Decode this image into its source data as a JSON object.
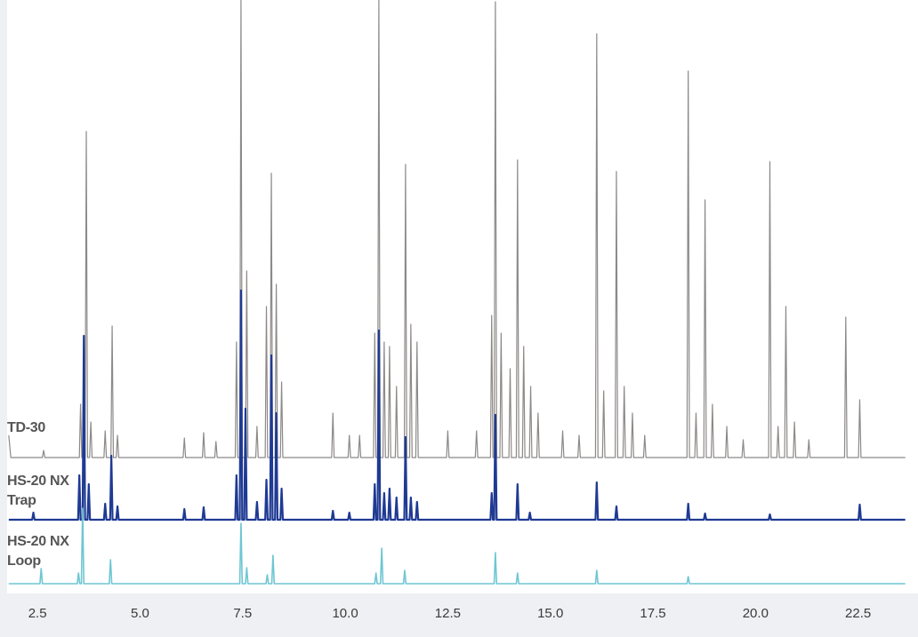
{
  "chart_data": {
    "type": "line",
    "xlim": [
      1.76,
      23.7
    ],
    "xticks": [
      2.5,
      {
        "value": 5,
        "label": "5.0"
      },
      7.5,
      {
        "value": 10,
        "label": "10.0"
      },
      12.5,
      {
        "value": 15,
        "label": "15.0"
      },
      17.5,
      {
        "value": 20,
        "label": "20.0"
      },
      22.5
    ],
    "series": [
      {
        "name": "TD-30",
        "color": "#8c8987",
        "x": [
          1.8,
          1.85,
          2.62,
          2.65,
          2.68,
          3.52,
          3.55,
          3.58,
          3.66,
          3.69,
          3.72,
          3.77,
          3.8,
          3.83,
          4.12,
          4.15,
          4.18,
          4.29,
          4.32,
          4.35,
          4.42,
          4.45,
          4.48,
          6.05,
          6.08,
          6.11,
          6.52,
          6.55,
          6.58,
          6.82,
          6.85,
          6.88,
          7.32,
          7.35,
          7.38,
          7.43,
          7.46,
          7.49,
          7.57,
          7.6,
          7.63,
          7.82,
          7.85,
          7.88,
          8.05,
          8.08,
          8.11,
          8.17,
          8.2,
          8.23,
          8.29,
          8.32,
          8.35,
          8.42,
          8.45,
          8.48,
          9.67,
          9.7,
          9.73,
          10.07,
          10.1,
          10.13,
          10.32,
          10.35,
          10.38,
          10.69,
          10.72,
          10.75,
          10.79,
          10.82,
          10.85,
          10.92,
          10.95,
          10.98,
          11.05,
          11.08,
          11.11,
          11.22,
          11.25,
          11.28,
          11.44,
          11.47,
          11.5,
          11.57,
          11.6,
          11.63,
          11.72,
          11.75,
          11.78,
          12.47,
          12.5,
          12.53,
          13.17,
          13.2,
          13.23,
          13.54,
          13.57,
          13.6,
          13.63,
          13.66,
          13.69,
          13.77,
          13.8,
          13.83,
          13.99,
          14.02,
          14.05,
          14.17,
          14.2,
          14.23,
          14.32,
          14.35,
          14.38,
          14.49,
          14.52,
          14.55,
          14.67,
          14.7,
          14.73,
          15.27,
          15.3,
          15.33,
          15.67,
          15.7,
          15.73,
          16.1,
          16.13,
          16.16,
          16.27,
          16.3,
          16.33,
          16.58,
          16.61,
          16.64,
          16.77,
          16.8,
          16.83,
          16.97,
          17.0,
          17.03,
          17.27,
          17.3,
          17.33,
          18.33,
          18.36,
          18.39,
          18.52,
          18.55,
          18.58,
          18.74,
          18.77,
          18.8,
          18.92,
          18.95,
          18.98,
          19.27,
          19.3,
          19.33,
          19.67,
          19.7,
          19.73,
          20.32,
          20.35,
          20.38,
          20.52,
          20.55,
          20.58,
          20.71,
          20.74,
          20.77,
          20.92,
          20.95,
          20.98,
          21.27,
          21.3,
          21.33,
          22.17,
          22.2,
          22.23,
          22.51,
          22.54,
          22.57,
          23.65
        ],
        "values": [
          25,
          0,
          0,
          8,
          0,
          0,
          60,
          0,
          0,
          367,
          0,
          0,
          40,
          0,
          0,
          30,
          0,
          0,
          148,
          0,
          0,
          25,
          0,
          0,
          22,
          0,
          0,
          28,
          0,
          0,
          18,
          0,
          0,
          130,
          0,
          0,
          515,
          0,
          0,
          210,
          0,
          0,
          35,
          0,
          0,
          170,
          0,
          0,
          320,
          0,
          0,
          195,
          0,
          0,
          85,
          0,
          0,
          50,
          0,
          0,
          25,
          0,
          0,
          25,
          0,
          0,
          140,
          0,
          0,
          515,
          0,
          0,
          130,
          0,
          0,
          125,
          0,
          0,
          80,
          0,
          0,
          330,
          0,
          0,
          150,
          0,
          0,
          130,
          0,
          0,
          30,
          0,
          0,
          30,
          0,
          0,
          160,
          0,
          0,
          513,
          0,
          0,
          140,
          0,
          0,
          100,
          0,
          0,
          335,
          0,
          0,
          125,
          0,
          0,
          80,
          0,
          0,
          50,
          0,
          0,
          30,
          0,
          0,
          25,
          0,
          0,
          477,
          0,
          0,
          75,
          0,
          0,
          322,
          0,
          0,
          80,
          0,
          0,
          50,
          0,
          0,
          25,
          0,
          0,
          435,
          0,
          0,
          50,
          0,
          0,
          290,
          0,
          0,
          60,
          0,
          0,
          35,
          0,
          0,
          20,
          0,
          0,
          333,
          0,
          0,
          35,
          0,
          0,
          170,
          0,
          0,
          40,
          0,
          0,
          20,
          0,
          0,
          158,
          0,
          0,
          65,
          0,
          0
        ]
      },
      {
        "name": "HS-20 NX Trap",
        "color": "#1f3a93",
        "x": [
          1.8,
          2.37,
          2.4,
          2.43,
          3.49,
          3.52,
          3.55,
          3.6,
          3.63,
          3.66,
          3.72,
          3.75,
          3.78,
          4.12,
          4.15,
          4.18,
          4.27,
          4.3,
          4.33,
          4.42,
          4.45,
          4.48,
          6.05,
          6.08,
          6.11,
          6.52,
          6.55,
          6.58,
          7.32,
          7.35,
          7.38,
          7.43,
          7.46,
          7.49,
          7.54,
          7.57,
          7.6,
          7.82,
          7.85,
          7.88,
          8.05,
          8.08,
          8.11,
          8.17,
          8.2,
          8.23,
          8.29,
          8.32,
          8.35,
          8.42,
          8.45,
          8.48,
          9.67,
          9.7,
          9.73,
          10.07,
          10.1,
          10.13,
          10.69,
          10.72,
          10.75,
          10.79,
          10.82,
          10.85,
          10.92,
          10.95,
          10.98,
          11.05,
          11.08,
          11.11,
          11.22,
          11.25,
          11.28,
          11.44,
          11.47,
          11.5,
          11.57,
          11.6,
          11.63,
          11.72,
          11.75,
          11.78,
          13.54,
          13.57,
          13.6,
          13.63,
          13.66,
          13.69,
          14.17,
          14.2,
          14.23,
          14.47,
          14.5,
          14.53,
          16.1,
          16.13,
          16.16,
          16.58,
          16.61,
          16.64,
          18.33,
          18.36,
          18.39,
          18.74,
          18.77,
          18.8,
          20.32,
          20.35,
          20.38,
          22.51,
          22.54,
          22.57,
          23.65
        ],
        "values": [
          0,
          0,
          8,
          0,
          0,
          50,
          0,
          0,
          207,
          0,
          0,
          40,
          0,
          0,
          18,
          0,
          0,
          72,
          0,
          0,
          15,
          0,
          0,
          12,
          0,
          0,
          14,
          0,
          0,
          50,
          0,
          0,
          258,
          0,
          0,
          125,
          0,
          0,
          20,
          0,
          0,
          45,
          0,
          0,
          185,
          0,
          0,
          120,
          0,
          0,
          35,
          0,
          0,
          10,
          0,
          0,
          8,
          0,
          0,
          40,
          0,
          0,
          213,
          0,
          0,
          30,
          0,
          0,
          35,
          0,
          0,
          25,
          0,
          0,
          93,
          0,
          0,
          25,
          0,
          0,
          20,
          0,
          0,
          30,
          0,
          0,
          118,
          0,
          0,
          40,
          0,
          0,
          8,
          0,
          0,
          42,
          0,
          0,
          15,
          0,
          0,
          18,
          0,
          0,
          7,
          0,
          0,
          6,
          0,
          0,
          17,
          0,
          0
        ]
      },
      {
        "name": "HS-20 NX Loop",
        "color": "#6ec6d3",
        "x": [
          1.8,
          2.56,
          2.59,
          2.62,
          3.47,
          3.5,
          3.53,
          3.57,
          3.6,
          3.63,
          4.25,
          4.28,
          4.31,
          7.43,
          7.46,
          7.49,
          7.57,
          7.6,
          7.63,
          8.07,
          8.1,
          8.13,
          8.21,
          8.24,
          8.27,
          10.72,
          10.75,
          10.78,
          10.86,
          10.89,
          10.92,
          11.42,
          11.45,
          11.48,
          13.63,
          13.66,
          13.69,
          14.17,
          14.2,
          14.23,
          16.1,
          16.13,
          16.16,
          18.33,
          18.36,
          18.39,
          23.65
        ],
        "values": [
          0,
          0,
          17,
          0,
          0,
          12,
          0,
          0,
          85,
          0,
          0,
          27,
          0,
          0,
          68,
          0,
          0,
          18,
          0,
          0,
          10,
          0,
          0,
          32,
          0,
          0,
          12,
          0,
          0,
          40,
          0,
          0,
          15,
          0,
          0,
          35,
          0,
          0,
          12,
          0,
          0,
          15,
          0,
          0,
          8,
          0,
          0
        ]
      }
    ]
  }
}
